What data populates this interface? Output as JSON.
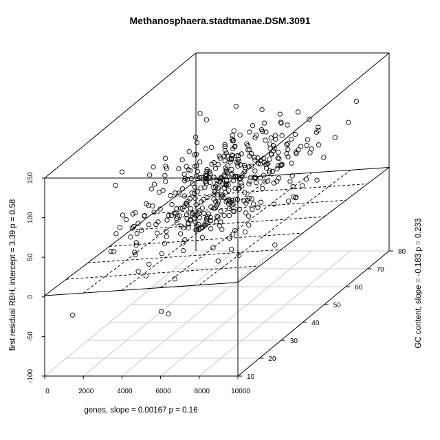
{
  "chart_data": {
    "type": "scatter",
    "title": "Methanosphaera.stadtmanae.DSM.3091",
    "xlabel": "genes, slope =  0.00167 p =  0.16",
    "ylabel": "GC content, slope =  -0.183 p =  0.233",
    "zlabel": "first residual RBH, intercept =  3.39 p =  0.58",
    "xlim": [
      0,
      10000
    ],
    "ylim": [
      10,
      80
    ],
    "zlim": [
      -100,
      150
    ],
    "x_ticks": [
      "0",
      "2000",
      "4000",
      "6000",
      "8000",
      "10000"
    ],
    "y_ticks": [
      "10",
      "20",
      "30",
      "40",
      "50",
      "60",
      "70",
      "80"
    ],
    "z_ticks": [
      "-100",
      "-50",
      "0",
      "50",
      "100",
      "150"
    ],
    "grid": true,
    "regression_plane": {
      "intercept": 3.39,
      "slope_x": 0.00167,
      "slope_y": -0.183
    },
    "point_count": 430,
    "point_sample": [
      [
        1000,
        14,
        -32
      ],
      [
        4500,
        27,
        -60
      ],
      [
        4200,
        44,
        29
      ],
      [
        8400,
        43,
        108
      ],
      [
        6400,
        40,
        49
      ],
      [
        5300,
        60,
        88
      ],
      [
        9200,
        72,
        107
      ],
      [
        3500,
        22,
        5
      ],
      [
        7000,
        55,
        60
      ],
      [
        2500,
        30,
        20
      ],
      [
        5800,
        35,
        40
      ],
      [
        8000,
        65,
        90
      ]
    ]
  }
}
